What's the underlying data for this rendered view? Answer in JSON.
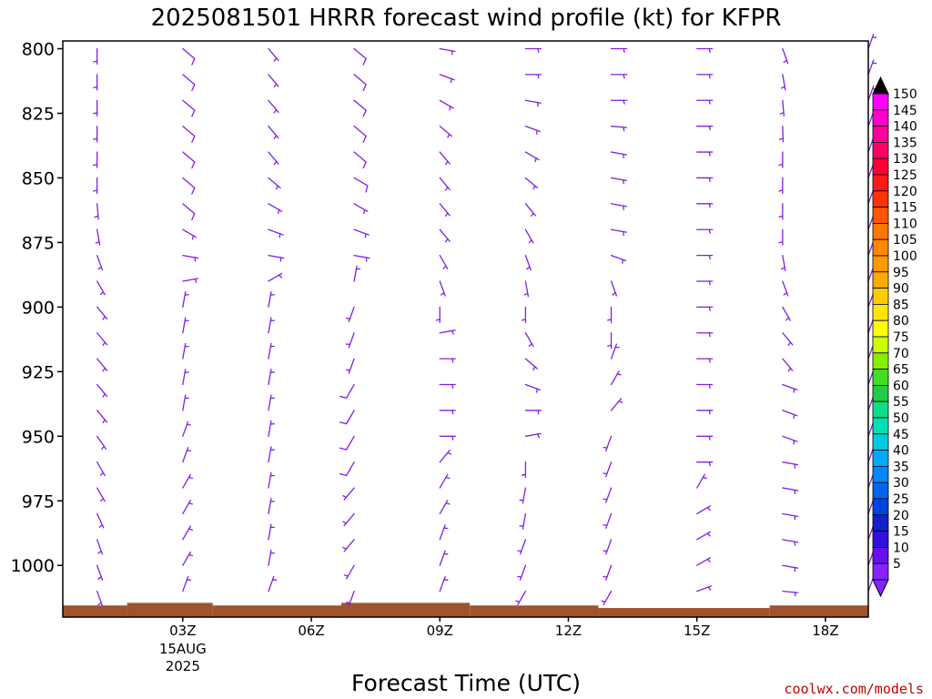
{
  "chart_data": {
    "type": "wind-barb-time-height",
    "title": "2025081501 HRRR forecast wind profile (kt) for KFPR",
    "xlabel": "Forecast Time (UTC)",
    "ylabel": "",
    "units": "kt",
    "y_scale": "pressure (hPa), inverted",
    "ylim": [
      1020,
      797
    ],
    "xlim": [
      0.2,
      19.0
    ],
    "y_ticks": [
      "800",
      "825",
      "850",
      "875",
      "900",
      "925",
      "950",
      "975",
      "1000"
    ],
    "x_ticks": [
      {
        "hour": 3,
        "label": "03Z",
        "date_line1": "15AUG",
        "date_line2": "2025"
      },
      {
        "hour": 6,
        "label": "06Z"
      },
      {
        "hour": 9,
        "label": "09Z"
      },
      {
        "hour": 12,
        "label": "12Z"
      },
      {
        "hour": 15,
        "label": "15Z"
      },
      {
        "hour": 18,
        "label": "18Z"
      }
    ],
    "barb_levels_hpa": [
      800,
      810,
      820,
      830,
      840,
      850,
      860,
      870,
      880,
      890,
      900,
      910,
      920,
      930,
      940,
      950,
      960,
      970,
      980,
      990,
      1000,
      1010
    ],
    "barb_color": "#8020e0",
    "columns": [
      {
        "hour": 1,
        "dir": [
          180,
          180,
          180,
          180,
          180,
          180,
          175,
          170,
          160,
          150,
          140,
          140,
          140,
          140,
          140,
          145,
          150,
          150,
          155,
          160,
          160,
          160
        ],
        "spd": [
          8,
          8,
          8,
          8,
          8,
          7,
          7,
          6,
          6,
          6,
          6,
          6,
          6,
          6,
          6,
          6,
          6,
          6,
          6,
          6,
          6,
          5
        ]
      },
      {
        "hour": 3,
        "dir": [
          130,
          130,
          130,
          130,
          130,
          130,
          130,
          120,
          100,
          80,
          10,
          10,
          10,
          10,
          10,
          20,
          20,
          30,
          30,
          30,
          30,
          20
        ],
        "spd": [
          10,
          10,
          10,
          10,
          10,
          10,
          10,
          8,
          6,
          5,
          5,
          6,
          7,
          7,
          7,
          7,
          7,
          7,
          7,
          6,
          6,
          5
        ]
      },
      {
        "hour": 5,
        "dir": [
          140,
          140,
          140,
          140,
          140,
          130,
          120,
          110,
          100,
          60,
          10,
          10,
          10,
          10,
          10,
          10,
          10,
          10,
          10,
          10,
          10,
          20
        ],
        "spd": [
          8,
          8,
          8,
          8,
          8,
          8,
          7,
          6,
          6,
          5,
          6,
          7,
          7,
          8,
          8,
          8,
          8,
          8,
          8,
          7,
          6,
          5
        ]
      },
      {
        "hour": 7,
        "dir": [
          130,
          130,
          130,
          130,
          130,
          120,
          120,
          110,
          100,
          10,
          200,
          200,
          200,
          210,
          210,
          210,
          210,
          220,
          220,
          220,
          210,
          200
        ],
        "spd": [
          10,
          10,
          10,
          10,
          10,
          10,
          8,
          7,
          6,
          5,
          7,
          8,
          9,
          10,
          10,
          10,
          10,
          9,
          8,
          8,
          7,
          6
        ]
      },
      {
        "hour": 9,
        "dir": [
          100,
          110,
          120,
          130,
          140,
          140,
          140,
          140,
          150,
          160,
          180,
          80,
          90,
          90,
          90,
          90,
          40,
          30,
          30,
          20,
          20,
          20
        ],
        "spd": [
          8,
          8,
          8,
          8,
          8,
          8,
          8,
          7,
          6,
          5,
          6,
          7,
          7,
          8,
          8,
          8,
          8,
          8,
          7,
          6,
          6,
          5
        ]
      },
      {
        "hour": 11,
        "dir": [
          90,
          90,
          100,
          110,
          120,
          130,
          140,
          150,
          160,
          170,
          180,
          150,
          130,
          110,
          90,
          80,
          180,
          190,
          190,
          200,
          200,
          210
        ],
        "spd": [
          8,
          8,
          8,
          8,
          8,
          8,
          7,
          6,
          6,
          5,
          6,
          7,
          7,
          8,
          8,
          8,
          8,
          8,
          8,
          7,
          7,
          6
        ]
      },
      {
        "hour": 13,
        "dir": [
          90,
          90,
          90,
          95,
          100,
          100,
          100,
          100,
          110,
          160,
          180,
          180,
          20,
          30,
          40,
          200,
          200,
          200,
          200,
          200,
          200,
          210
        ],
        "spd": [
          8,
          8,
          8,
          8,
          8,
          8,
          7,
          7,
          6,
          6,
          6,
          6,
          6,
          6,
          6,
          6,
          6,
          6,
          6,
          6,
          6,
          5
        ]
      },
      {
        "hour": 15,
        "dir": [
          90,
          90,
          90,
          90,
          90,
          90,
          90,
          90,
          90,
          90,
          90,
          90,
          90,
          90,
          90,
          90,
          90,
          30,
          60,
          60,
          60,
          70
        ],
        "spd": [
          8,
          8,
          8,
          8,
          8,
          8,
          8,
          8,
          8,
          8,
          8,
          8,
          8,
          8,
          8,
          8,
          8,
          8,
          8,
          8,
          8,
          8
        ]
      },
      {
        "hour": 17,
        "dir": [
          160,
          170,
          175,
          178,
          180,
          180,
          180,
          180,
          170,
          160,
          150,
          140,
          140,
          110,
          110,
          110,
          100,
          100,
          100,
          100,
          100,
          95
        ],
        "spd": [
          6,
          6,
          6,
          6,
          6,
          6,
          6,
          6,
          6,
          6,
          6,
          6,
          7,
          7,
          7,
          7,
          7,
          7,
          7,
          7,
          7,
          6
        ]
      },
      {
        "hour": 19,
        "dir": [
          20,
          20,
          20,
          20,
          20,
          20,
          20,
          20,
          20,
          20,
          20,
          20,
          20,
          20,
          20,
          20,
          20,
          20,
          20,
          20,
          20,
          20
        ],
        "spd": [
          6,
          6,
          6,
          6,
          6,
          6,
          6,
          6,
          6,
          6,
          6,
          6,
          6,
          6,
          6,
          6,
          6,
          6,
          6,
          6,
          6,
          6
        ]
      }
    ],
    "terrain_color": "#a0522d",
    "terrain_hpa": [
      {
        "x0": 0.2,
        "x1": 1.7,
        "p": 1015.5
      },
      {
        "x0": 1.7,
        "x1": 3.7,
        "p": 1014.5
      },
      {
        "x0": 3.7,
        "x1": 6.7,
        "p": 1015.5
      },
      {
        "x0": 6.7,
        "x1": 9.7,
        "p": 1014.5
      },
      {
        "x0": 9.7,
        "x1": 12.7,
        "p": 1015.5
      },
      {
        "x0": 12.7,
        "x1": 16.7,
        "p": 1016.5
      },
      {
        "x0": 16.7,
        "x1": 19.0,
        "p": 1015.5
      }
    ],
    "colorbar": {
      "labels": [
        "150",
        "145",
        "140",
        "135",
        "130",
        "125",
        "120",
        "115",
        "110",
        "105",
        "100",
        "95",
        "90",
        "85",
        "80",
        "75",
        "70",
        "65",
        "60",
        "55",
        "50",
        "45",
        "40",
        "35",
        "30",
        "25",
        "20",
        "15",
        "10",
        "5"
      ],
      "colors": [
        "#ff00ff",
        "#ff00cc",
        "#ff0099",
        "#ff0066",
        "#ff0033",
        "#ff1a1a",
        "#ff3300",
        "#ff5500",
        "#ff7700",
        "#ff8800",
        "#ff9900",
        "#ffaa00",
        "#ffcc00",
        "#ffe600",
        "#ffff00",
        "#ccff00",
        "#88ee00",
        "#44dd22",
        "#22cc44",
        "#11dd88",
        "#00e0b0",
        "#00ccdd",
        "#00aaff",
        "#0088ff",
        "#0066ee",
        "#0044dd",
        "#1122cc",
        "#3311dd",
        "#6611ee",
        "#8822ff"
      ],
      "top_arrow_color": "#000000",
      "bottom_arrow_color": "#8822ff"
    },
    "credit": "coolwx.com/models"
  }
}
